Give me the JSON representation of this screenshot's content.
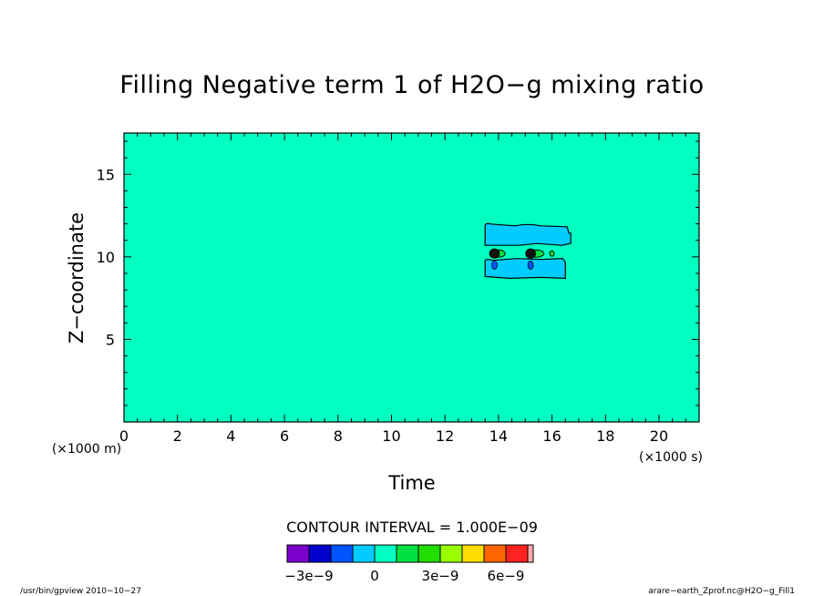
{
  "chart_data": {
    "type": "heatmap",
    "title": "Filling Negative term 1 of H2O−g mixing ratio",
    "xlabel": "Time",
    "ylabel": "Z−coordinate",
    "x_unit": "(×1000 s)",
    "y_unit": "(×1000 m)",
    "xlim": [
      0,
      21.5
    ],
    "ylim": [
      0,
      17.5
    ],
    "x_ticks": [
      0,
      2,
      4,
      6,
      8,
      10,
      12,
      14,
      16,
      18,
      20
    ],
    "y_ticks": [
      5,
      10,
      15
    ],
    "background_level": 0,
    "contour_interval_text": "CONTOUR INTERVAL = 1.000E−09",
    "regions": [
      {
        "kind": "cyan-band-upper",
        "level": -1e-09,
        "x0": 13.5,
        "x1": 16.7,
        "y0": 10.7,
        "y1": 12.1
      },
      {
        "kind": "cyan-band-lower",
        "level": -1e-09,
        "x0": 13.5,
        "x1": 16.5,
        "y0": 8.7,
        "y1": 9.9
      },
      {
        "kind": "green-ring",
        "level": 1e-09,
        "x": 14.0,
        "y": 10.2,
        "rx": 0.25,
        "ry": 0.22
      },
      {
        "kind": "green-ring",
        "level": 1e-09,
        "x": 15.4,
        "y": 10.2,
        "rx": 0.3,
        "ry": 0.22
      },
      {
        "kind": "green-dot",
        "level": 1e-09,
        "x": 16.0,
        "y": 10.2,
        "rx": 0.08,
        "ry": 0.12
      },
      {
        "kind": "black-blob",
        "level": 0,
        "x": 13.85,
        "y": 10.2,
        "rx": 0.18,
        "ry": 0.28
      },
      {
        "kind": "black-blob",
        "level": 0,
        "x": 15.2,
        "y": 10.2,
        "rx": 0.18,
        "ry": 0.28
      },
      {
        "kind": "blue-drip",
        "level": -2e-09,
        "x": 13.85,
        "y": 9.5,
        "rx": 0.1,
        "ry": 0.25
      },
      {
        "kind": "blue-drip",
        "level": -2e-09,
        "x": 15.2,
        "y": 9.5,
        "rx": 0.1,
        "ry": 0.25
      }
    ],
    "colorbar": {
      "colors": [
        "#7a00cc",
        "#0000cc",
        "#0055ff",
        "#00ccff",
        "#00ffc0",
        "#00e040",
        "#22dd00",
        "#99ff00",
        "#ffdd00",
        "#ff6600",
        "#ff2222",
        "#ffaaaa"
      ],
      "labels": [
        {
          "text": "−3e−9",
          "value": -3e-09
        },
        {
          "text": "0",
          "value": 0
        },
        {
          "text": "3e−9",
          "value": 3e-09
        },
        {
          "text": "6e−9",
          "value": 6e-09
        }
      ],
      "min": -4e-09,
      "step": 1e-09
    }
  },
  "footer": {
    "left": "/usr/bin/gpview   2010−10−27",
    "right": "arare−earth_Zprof.nc@H2O−g_Fill1"
  }
}
